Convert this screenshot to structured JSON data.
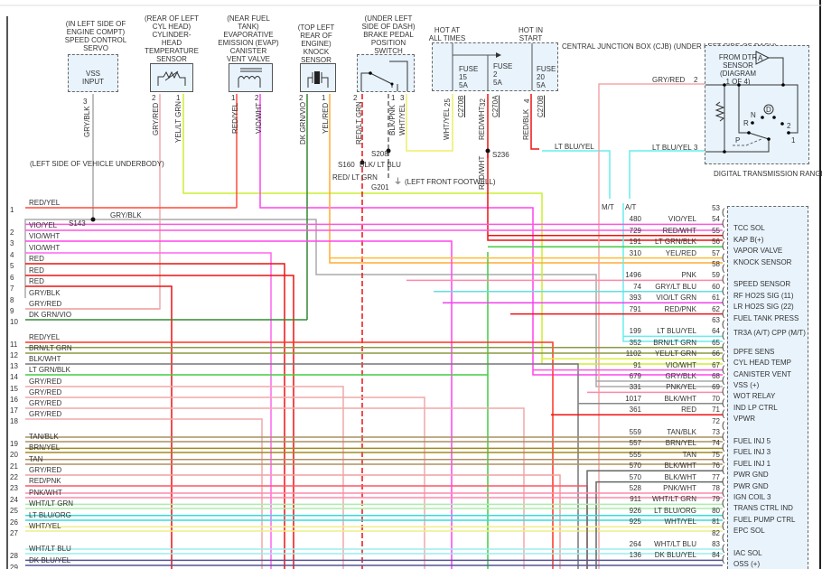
{
  "components": {
    "speed_control": {
      "location": "(IN LEFT SIDE OF\nENGINE COMPT)\nSPEED CONTROL\nSERVO",
      "box": "VSS\nINPUT",
      "pin": "3",
      "wire": "GRY/BLK"
    },
    "cht_sensor": {
      "location": "(REAR OF LEFT\nCYL HEAD)\nCYLINDER-\nHEAD\nTEMPERATURE\nSENSOR",
      "pins": [
        "2",
        "1"
      ],
      "wires": [
        "GRY/RED",
        "YEL/LT GRN"
      ]
    },
    "evap_valve": {
      "location": "(NEAR FUEL\nTANK)\nEVAPORATIVE\nEMISSION (EVAP)\nCANISTER\nVENT VALVE",
      "pins": [
        "1",
        "2"
      ],
      "wires": [
        "RED/YEL",
        "VIO/WHT"
      ]
    },
    "knock_sensor": {
      "location": "(TOP LEFT\nREAR OF\nENGINE)\nKNOCK\nSENSOR",
      "pins": [
        "2",
        "1"
      ],
      "wires": [
        "DK GRN/VIO",
        "YEL/RED"
      ]
    },
    "brake_switch": {
      "location": "(UNDER LEFT\nSIDE OF DASH)\nBRAKE PEDAL\nPOSITION\nSWITCH",
      "pins": [
        "2",
        "1",
        "3"
      ],
      "wires": [
        "RED/LT GRN",
        "BLK/PNK",
        "WHT/YEL"
      ]
    },
    "splices": {
      "s208": "S208",
      "s160": "S160",
      "g201": "G201",
      "s236": "S236",
      "s143": "S143",
      "s160_wire": "RED/\nLT GRN",
      "s208_wire": "BLK/\nLT BLU",
      "g201_loc": "(LEFT FRONT\nFOOTWELL)",
      "s143_loc": "(LEFT SIDE OF\nVEHICLE\nUNDERBODY)",
      "s143_wire": "GRY/BLK"
    },
    "cjb": {
      "hot_all": "HOT AT\nALL TIMES",
      "hot_start": "HOT IN\nSTART",
      "name": "CENTRAL\nJUNCTION\nBOX (CJB)\n(UNDER\nLEFT\nSIDE OF\nDASH)",
      "fuses": [
        {
          "label": "FUSE",
          "num": "15",
          "amp": "5A"
        },
        {
          "label": "FUSE",
          "num": "2",
          "amp": "5A"
        },
        {
          "label": "FUSE",
          "num": "20",
          "amp": "5A"
        }
      ],
      "outputs": [
        {
          "wire": "WHT/YEL",
          "pin": "25",
          "conn": "C270B"
        },
        {
          "wire": "RED/WHT",
          "pin": "32",
          "conn": "C270A"
        },
        {
          "wire": "RED/BLK",
          "pin": "4",
          "conn": "C270B"
        }
      ],
      "s236_wire": "RED/WHT"
    },
    "dtr": {
      "from": "FROM DTR\nSENSOR\n(DIAGRAM\n1 OF 4)",
      "arrow": "A",
      "wire2": "GRY/RED",
      "pin2": "2",
      "wire3": "LT BLU/YEL",
      "pin3": "3",
      "ltbluyel": "LT BLU/YEL",
      "positions": {
        "n": "N",
        "d": "D",
        "r": "R",
        "p": "P",
        "two": "2",
        "one": "1"
      },
      "name": "DIGITAL TRANSMISSION\nRANGE (DTR) SENSOR\n(LEFT SIDE OF\nTRANSMISSION)",
      "mt": "M/T",
      "at": "A/T"
    }
  },
  "left_rows": [
    {
      "n": "1",
      "wire": "RED/YEL",
      "color": "#ff4a3a"
    },
    {
      "n": "2",
      "wire": "VIO/YEL",
      "color": "#ff55e0"
    },
    {
      "n": "3",
      "wire": "VIO/WHT",
      "color": "#ff44ee"
    },
    {
      "n": "4",
      "wire": "VIO/WHT",
      "color": "#ff66ee"
    },
    {
      "n": "5",
      "wire": "RED",
      "color": "#ee1111"
    },
    {
      "n": "6",
      "wire": "RED",
      "color": "#ee1111"
    },
    {
      "n": "7",
      "wire": "RED",
      "color": "#ee1111"
    },
    {
      "n": "8",
      "wire": "GRY/BLK",
      "color": "#aaaaaa"
    },
    {
      "n": "9",
      "wire": "GRY/RED",
      "color": "#f0a8a8"
    },
    {
      "n": "10",
      "wire": "DK GRN/VIO",
      "color": "#338833"
    },
    {
      "n": "11",
      "wire": "RED/YEL",
      "color": "#ff3322"
    },
    {
      "n": "12",
      "wire": "BRN/LT GRN",
      "color": "#8a9a40"
    },
    {
      "n": "13",
      "wire": "BLK/WHT",
      "color": "#777777"
    },
    {
      "n": "14",
      "wire": "LT GRN/BLK",
      "color": "#44cc44"
    },
    {
      "n": "15",
      "wire": "GRY/RED",
      "color": "#f0a8a8"
    },
    {
      "n": "16",
      "wire": "GRY/RED",
      "color": "#f0a8a8"
    },
    {
      "n": "17",
      "wire": "GRY/RED",
      "color": "#f0a8a8"
    },
    {
      "n": "18",
      "wire": "GRY/RED",
      "color": "#f0a8a8"
    },
    {
      "n": "19",
      "wire": "TAN/BLK",
      "color": "#a89060"
    },
    {
      "n": "20",
      "wire": "BRN/YEL",
      "color": "#a08a20"
    },
    {
      "n": "21",
      "wire": "TAN",
      "color": "#b09060"
    },
    {
      "n": "22",
      "wire": "GRY/RED",
      "color": "#f0a0a0"
    },
    {
      "n": "23",
      "wire": "RED/PNK",
      "color": "#ff5566"
    },
    {
      "n": "24",
      "wire": "PNK/WHT",
      "color": "#ff88aa"
    },
    {
      "n": "25",
      "wire": "WHT/LT GRN",
      "color": "#aaeeaa"
    },
    {
      "n": "26",
      "wire": "LT BLU/ORG",
      "color": "#33dddd"
    },
    {
      "n": "27",
      "wire": "WHT/YEL",
      "color": "#eeee88"
    },
    {
      "n": "28",
      "wire": "WHT/LT BLU",
      "color": "#99eeee"
    },
    {
      "n": "29",
      "wire": "DK BLU/YEL",
      "color": "#555599"
    }
  ],
  "pcm_pins": [
    {
      "pin": "53",
      "id": "",
      "wire": "",
      "desc": "",
      "color": ""
    },
    {
      "pin": "54",
      "id": "480",
      "wire": "VIO/YEL",
      "desc": "TCC SOL",
      "color": "#ff55e0"
    },
    {
      "pin": "55",
      "id": "729",
      "wire": "RED/WHT",
      "desc": "KAP B(+)",
      "color": "#ee1111"
    },
    {
      "pin": "56",
      "id": "191",
      "wire": "LT GRN/BLK",
      "desc": "VAPOR VALVE",
      "color": "#44cc44"
    },
    {
      "pin": "57",
      "id": "310",
      "wire": "YEL/RED",
      "desc": "KNOCK SENSOR",
      "color": "#ffbb33"
    },
    {
      "pin": "58",
      "id": "",
      "wire": "",
      "desc": "",
      "color": ""
    },
    {
      "pin": "59",
      "id": "1496",
      "wire": "PNK",
      "desc": "SPEED SENSOR",
      "color": "#ff88aa"
    },
    {
      "pin": "60",
      "id": "74",
      "wire": "GRY/LT BLU",
      "desc": "RF HO2S SIG (11)",
      "color": "#66dddd"
    },
    {
      "pin": "61",
      "id": "393",
      "wire": "VIO/LT GRN",
      "desc": "LR HO2S SIG (22)",
      "color": "#ee44ee"
    },
    {
      "pin": "62",
      "id": "791",
      "wire": "RED/PNK",
      "desc": "FUEL TANK PRESS",
      "color": "#ee1111"
    },
    {
      "pin": "63",
      "id": "",
      "wire": "",
      "desc": "",
      "color": ""
    },
    {
      "pin": "64",
      "id": "199",
      "wire": "LT BLU/YEL",
      "desc": "TR3A (A/T)\nCPP (M/T)",
      "color": "#66eeee"
    },
    {
      "pin": "65",
      "id": "352",
      "wire": "BRN/LT GRN",
      "desc": "DPFE SENS",
      "color": "#8a9a40"
    },
    {
      "pin": "66",
      "id": "1102",
      "wire": "YEL/LT GRN",
      "desc": "CYL HEAD TEMP",
      "color": "#ddee44"
    },
    {
      "pin": "67",
      "id": "91",
      "wire": "VIO/WHT",
      "desc": "CANISTER VENT",
      "color": "#ff55e0"
    },
    {
      "pin": "68",
      "id": "679",
      "wire": "GRY/BLK",
      "desc": "VSS (+)",
      "color": "#aaaaaa"
    },
    {
      "pin": "69",
      "id": "331",
      "wire": "PNK/YEL",
      "desc": "WOT RELAY",
      "color": "#ff88aa"
    },
    {
      "pin": "70",
      "id": "1017",
      "wire": "BLK/WHT",
      "desc": "IND LP CTRL",
      "color": "#888888"
    },
    {
      "pin": "71",
      "id": "361",
      "wire": "RED",
      "desc": "VPWR",
      "color": "#ee1111"
    },
    {
      "pin": "72",
      "id": "",
      "wire": "",
      "desc": "",
      "color": ""
    },
    {
      "pin": "73",
      "id": "559",
      "wire": "TAN/BLK",
      "desc": "FUEL INJ 5",
      "color": "#a89060"
    },
    {
      "pin": "74",
      "id": "557",
      "wire": "BRN/YEL",
      "desc": "FUEL INJ 3",
      "color": "#a08a20"
    },
    {
      "pin": "75",
      "id": "555",
      "wire": "TAN",
      "desc": "FUEL INJ 1",
      "color": "#b09060"
    },
    {
      "pin": "76",
      "id": "570",
      "wire": "BLK/WHT",
      "desc": "PWR GND",
      "color": "#666666"
    },
    {
      "pin": "77",
      "id": "570",
      "wire": "BLK/WHT",
      "desc": "PWR GND",
      "color": "#666666"
    },
    {
      "pin": "78",
      "id": "528",
      "wire": "PNK/WHT",
      "desc": "IGN COIL 3",
      "color": "#ff88aa"
    },
    {
      "pin": "79",
      "id": "911",
      "wire": "WHT/LT GRN",
      "desc": "TRANS CTRL IND",
      "color": "#aaeeaa"
    },
    {
      "pin": "80",
      "id": "926",
      "wire": "LT BLU/ORG",
      "desc": "FUEL PUMP CTRL",
      "color": "#33dddd"
    },
    {
      "pin": "81",
      "id": "925",
      "wire": "WHT/YEL",
      "desc": "EPC SOL",
      "color": "#eeee88"
    },
    {
      "pin": "82",
      "id": "",
      "wire": "",
      "desc": "",
      "color": ""
    },
    {
      "pin": "83",
      "id": "264",
      "wire": "WHT/LT BLU",
      "desc": "IAC SOL",
      "color": "#99eeee"
    },
    {
      "pin": "84",
      "id": "136",
      "wire": "DK BLU/YEL",
      "desc": "OSS (+)",
      "color": "#555599"
    }
  ]
}
